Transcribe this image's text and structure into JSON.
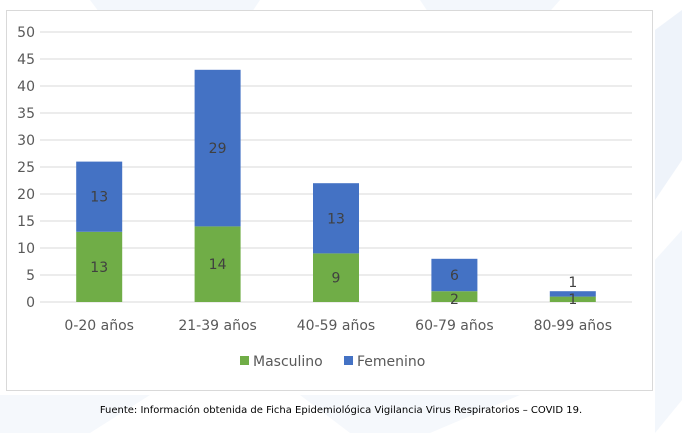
{
  "chart_data": {
    "type": "bar",
    "stacked": true,
    "title": "",
    "xlabel": "",
    "ylabel": "",
    "ylim": [
      0,
      50
    ],
    "yticks": [
      0,
      5,
      10,
      15,
      20,
      25,
      30,
      35,
      40,
      45,
      50
    ],
    "grid": true,
    "categories": [
      "0-20 años",
      "21-39 años",
      "40-59 años",
      "60-79 años",
      "80-99 años"
    ],
    "series": [
      {
        "name": "Masculino",
        "color": "#70ad47",
        "values": [
          13,
          14,
          9,
          2,
          1
        ]
      },
      {
        "name": "Femenino",
        "color": "#4472c4",
        "values": [
          13,
          29,
          13,
          6,
          1
        ]
      }
    ],
    "legend_position": "bottom"
  },
  "source_note": "Fuente: Información obtenida de Ficha Epidemiológica Vigilancia Virus Respiratorios – COVID 19."
}
